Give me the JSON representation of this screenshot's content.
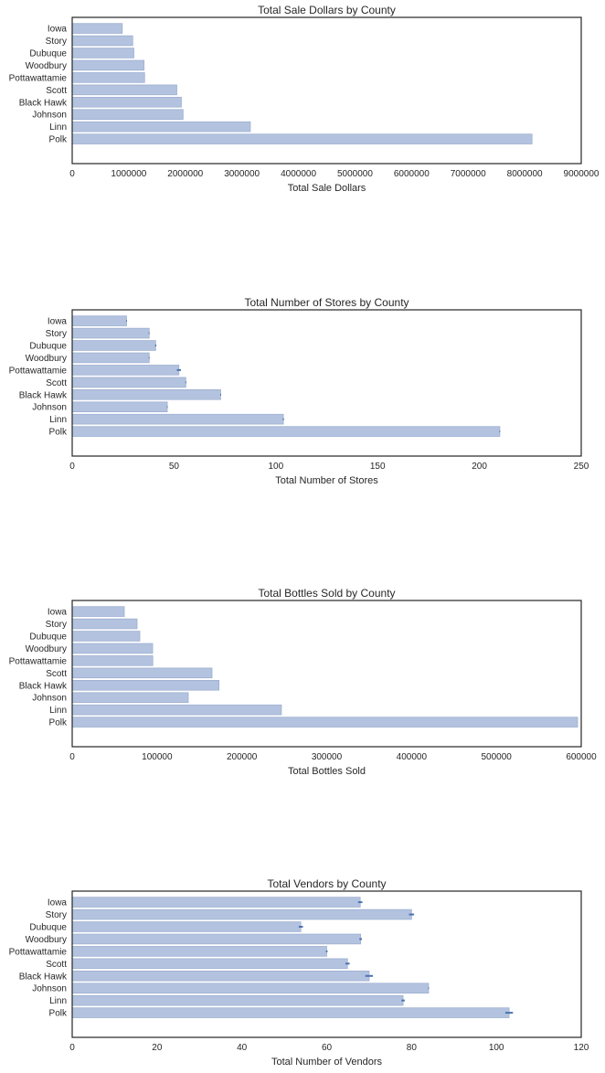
{
  "chart_data": [
    {
      "type": "bar",
      "orientation": "horizontal",
      "title": "Total Sale Dollars by County",
      "xlabel": "Total Sale Dollars",
      "ylabel": "",
      "categories": [
        "Iowa",
        "Story",
        "Dubuque",
        "Woodbury",
        "Pottawattamie",
        "Scott",
        "Black Hawk",
        "Johnson",
        "Linn",
        "Polk"
      ],
      "values": [
        885000,
        1070000,
        1090000,
        1270000,
        1280000,
        1850000,
        1930000,
        1960000,
        3150000,
        8130000
      ],
      "errors": [
        0,
        0,
        0,
        0,
        0,
        0,
        0,
        0,
        0,
        0
      ],
      "xlim": [
        0,
        9000000
      ],
      "xticks": [
        "0",
        "1000000",
        "2000000",
        "3000000",
        "4000000",
        "5000000",
        "6000000",
        "7000000",
        "8000000",
        "9000000"
      ],
      "grid": false
    },
    {
      "type": "bar",
      "orientation": "horizontal",
      "title": "Total Number of Stores by County",
      "xlabel": "Total Number of Stores",
      "ylabel": "",
      "categories": [
        "Iowa",
        "Story",
        "Dubuque",
        "Woodbury",
        "Pottawattamie",
        "Scott",
        "Black Hawk",
        "Johnson",
        "Linn",
        "Polk"
      ],
      "values": [
        26.7,
        37.8,
        41,
        37.8,
        52.4,
        55.8,
        72.9,
        46.7,
        103.7,
        210
      ],
      "errors": [
        0.2,
        0.2,
        0.3,
        0.2,
        1.0,
        0,
        0,
        0.2,
        0.3,
        0.2
      ],
      "xlim": [
        0,
        250
      ],
      "xticks": [
        "0",
        "50",
        "100",
        "150",
        "200",
        "250"
      ],
      "grid": false
    },
    {
      "type": "bar",
      "orientation": "horizontal",
      "title": "Total Bottles Sold by County",
      "xlabel": "Total Bottles Sold",
      "ylabel": "",
      "categories": [
        "Iowa",
        "Story",
        "Dubuque",
        "Woodbury",
        "Pottawattamie",
        "Scott",
        "Black Hawk",
        "Johnson",
        "Linn",
        "Polk"
      ],
      "values": [
        61400,
        76500,
        79700,
        94800,
        95000,
        164800,
        173000,
        136800,
        246600,
        595700
      ],
      "errors": [
        0,
        0,
        0,
        0,
        0,
        0,
        0,
        0,
        0,
        0
      ],
      "xlim": [
        0,
        600000
      ],
      "xticks": [
        "0",
        "100000",
        "200000",
        "300000",
        "400000",
        "500000",
        "600000"
      ],
      "grid": false
    },
    {
      "type": "bar",
      "orientation": "horizontal",
      "title": "Total Vendors by County",
      "xlabel": "Total Number of Vendors",
      "ylabel": "",
      "categories": [
        "Iowa",
        "Story",
        "Dubuque",
        "Woodbury",
        "Pottawattamie",
        "Scott",
        "Black Hawk",
        "Johnson",
        "Linn",
        "Polk"
      ],
      "values": [
        67.9,
        80,
        53.9,
        68,
        60,
        64.9,
        70,
        84,
        78,
        103
      ],
      "errors": [
        0.5,
        0.6,
        0.5,
        0.3,
        0.2,
        0.5,
        0.9,
        0.1,
        0.4,
        0.9
      ],
      "xlim": [
        0,
        120
      ],
      "xticks": [
        "0",
        "20",
        "40",
        "60",
        "80",
        "100",
        "120"
      ],
      "grid": false
    }
  ],
  "colors": {
    "bar_fill": "#b3c3df",
    "bar_edge": "#9dafd2",
    "error_bar": "#4c72b0",
    "axis": "#262626"
  }
}
